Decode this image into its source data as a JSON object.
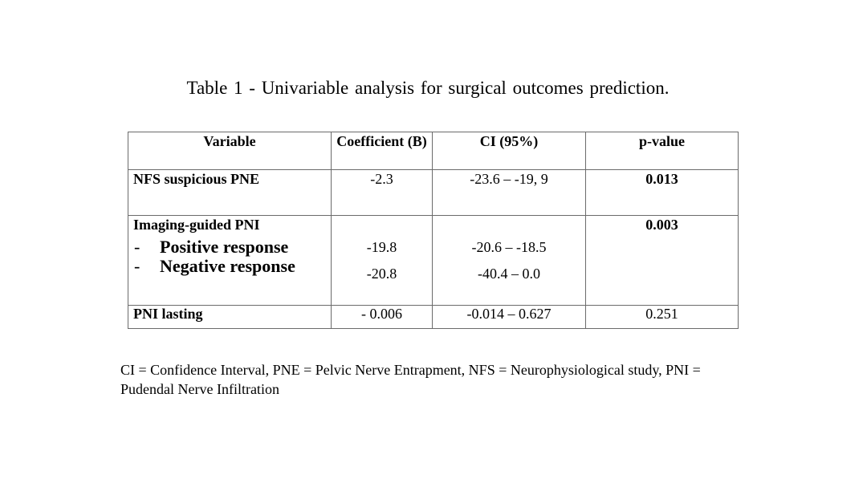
{
  "title": "Table 1 - Univariable analysis for surgical outcomes prediction.",
  "table": {
    "headers": [
      "Variable",
      "Coefficient (B)",
      "CI (95%)",
      "p-value"
    ],
    "rows": [
      {
        "variable": "NFS suspicious PNE",
        "coefficient": "-2.3",
        "ci": "-23.6 – -19, 9",
        "p_value": "0.013",
        "p_bold": true
      },
      {
        "variable": "Imaging-guided PNI",
        "p_value": "0.003",
        "p_bold": true,
        "subitems": [
          {
            "label": "Positive response",
            "coefficient": "-19.8",
            "ci": "-20.6 – -18.5"
          },
          {
            "label": "Negative response",
            "coefficient": "-20.8",
            "ci": "-40.4 – 0.0"
          }
        ]
      },
      {
        "variable": "PNI lasting",
        "coefficient": "- 0.006",
        "ci": "-0.014 – 0.627",
        "p_value": "0.251",
        "p_bold": false
      }
    ],
    "dash": "-"
  },
  "footnote": "CI = Confidence Interval, PNE = Pelvic Nerve Entrapment, NFS = Neurophysiological study, PNI = Pudendal Nerve Infiltration"
}
